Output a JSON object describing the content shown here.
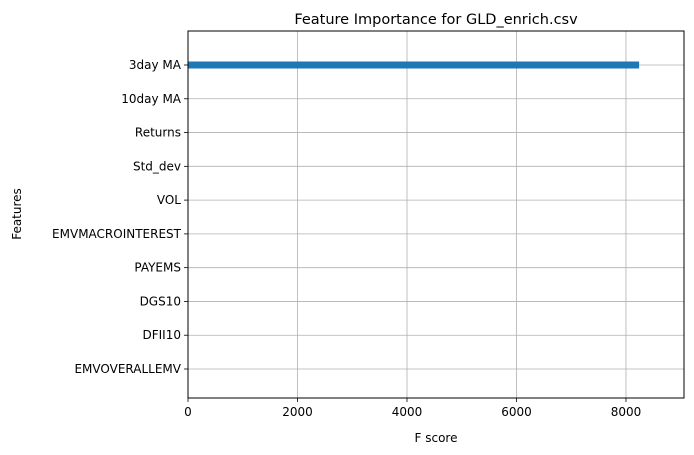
{
  "chart_data": {
    "type": "bar",
    "orientation": "horizontal",
    "title": "Feature Importance for GLD_enrich.csv",
    "xlabel": "F score",
    "ylabel": "Features",
    "categories": [
      "3day MA",
      "10day MA",
      "Returns",
      "Std_dev",
      "VOL",
      "EMVMACROINTEREST",
      "PAYEMS",
      "DGS10",
      "DFII10",
      "EMVOVERALLEMV"
    ],
    "values": [
      8240,
      5,
      1,
      1,
      1,
      1,
      1,
      1,
      1,
      1
    ],
    "xlim": [
      0,
      9060
    ],
    "xticks": [
      0,
      2000,
      4000,
      6000,
      8000
    ],
    "grid": true,
    "bar_color": "#1f77b4"
  }
}
